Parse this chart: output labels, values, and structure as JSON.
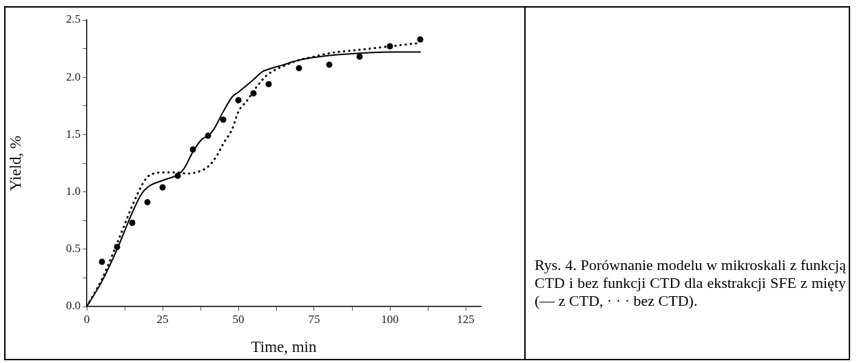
{
  "chart_data": {
    "type": "line",
    "xlabel": "Time, min",
    "ylabel": "Yield, %",
    "annotations": [
      "Rys. 4. Porównanie modelu w mikroskali z funkcją CTD i bez funkcji CTD dla ekstrakcji SFE z mięty (— z CTD, · · · bez CTD)."
    ],
    "xlim": [
      0,
      130
    ],
    "ylim": [
      0,
      2.5
    ],
    "xticks": [
      0,
      {
        "value": 12.5,
        "label": null
      },
      25,
      {
        "value": 37.5,
        "label": null
      },
      50,
      {
        "value": 62.5,
        "label": null
      },
      75,
      {
        "value": 87.5,
        "label": null
      },
      100,
      {
        "value": 112.5,
        "label": null
      },
      125
    ],
    "yticks": [
      {
        "value": 0,
        "label": "0.0"
      },
      {
        "value": 0.25,
        "label": null
      },
      {
        "value": 0.5,
        "label": "0.5"
      },
      {
        "value": 0.75,
        "label": null
      },
      {
        "value": 1,
        "label": "1.0"
      },
      {
        "value": 1.25,
        "label": null
      },
      {
        "value": 1.5,
        "label": "1.5"
      },
      {
        "value": 1.75,
        "label": null
      },
      {
        "value": 2,
        "label": "2.0"
      },
      {
        "value": 2.25,
        "label": null
      },
      {
        "value": 2.5,
        "label": "2.5"
      }
    ],
    "grid": false,
    "legend": false,
    "series": [
      {
        "type": "scatter",
        "color": "#000000",
        "marker": "circle",
        "x": [
          5,
          10,
          15,
          20,
          25,
          30,
          35,
          40,
          45,
          50,
          55,
          60,
          70,
          80,
          90,
          100,
          110
        ],
        "values": [
          0.39,
          0.52,
          0.73,
          0.91,
          1.04,
          1.14,
          1.37,
          1.49,
          1.63,
          1.8,
          1.86,
          1.94,
          2.08,
          2.11,
          2.18,
          2.27,
          2.33
        ]
      },
      {
        "type": "line",
        "color": "#000000",
        "marker": "none",
        "line_style": "solid",
        "x": [
          0,
          5,
          10,
          15,
          18,
          20,
          25,
          30,
          32,
          35,
          38,
          40,
          42,
          45,
          48,
          50,
          55,
          58,
          60,
          65,
          70,
          80,
          90,
          100,
          110
        ],
        "values": [
          0,
          0.22,
          0.5,
          0.82,
          0.98,
          1.04,
          1.1,
          1.15,
          1.2,
          1.35,
          1.46,
          1.49,
          1.55,
          1.7,
          1.83,
          1.87,
          1.98,
          2.05,
          2.07,
          2.11,
          2.15,
          2.19,
          2.21,
          2.22,
          2.22
        ]
      },
      {
        "type": "line",
        "color": "#000000",
        "marker": "none",
        "line_style": "dotted",
        "x": [
          0,
          5,
          10,
          15,
          18,
          20,
          22,
          25,
          30,
          33,
          36,
          40,
          43,
          45,
          48,
          50,
          53,
          55,
          58,
          60,
          65,
          70,
          75,
          80,
          90,
          100,
          110
        ],
        "values": [
          0,
          0.24,
          0.55,
          0.88,
          1.05,
          1.13,
          1.16,
          1.17,
          1.17,
          1.16,
          1.17,
          1.22,
          1.32,
          1.42,
          1.55,
          1.7,
          1.8,
          1.88,
          1.98,
          2.03,
          2.1,
          2.15,
          2.18,
          2.21,
          2.24,
          2.27,
          2.3
        ]
      }
    ]
  }
}
